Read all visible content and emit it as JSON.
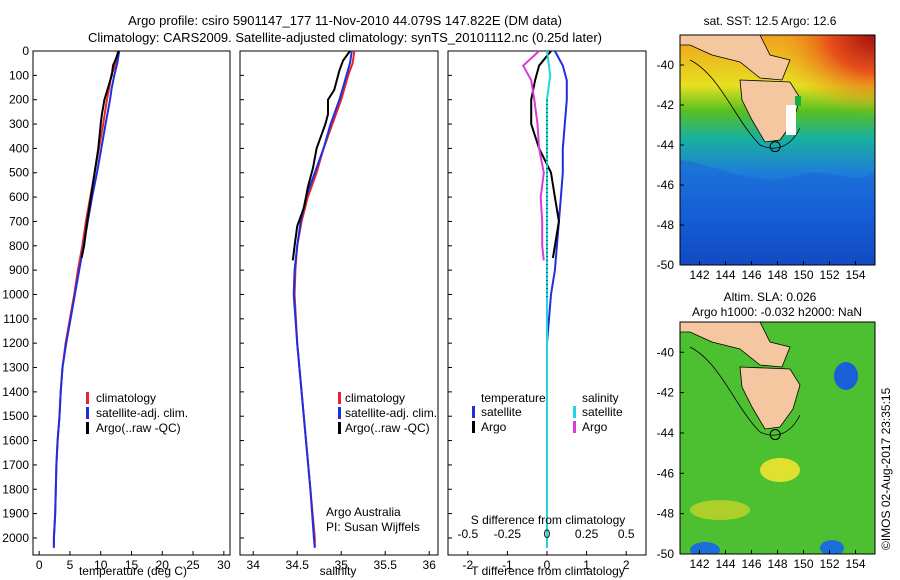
{
  "title_lines": [
    "Argo profile: csiro 5901147_177 11-Nov-2010 44.079S 147.822E (DM data)",
    "Climatology: CARS2009. Satellite-adjusted climatology: synTS_20101112.nc (0.25d later)"
  ],
  "watermark": "©IMOS 02-Aug-2017 23:35:15",
  "credit": [
    "Argo Australia",
    "PI: Susan Wijffels"
  ],
  "colors": {
    "climatology": "#e8262a",
    "satellite": "#1f2fe0",
    "argo": "#000000",
    "salinity_satellite": "#22d6e0",
    "salinity_argo": "#d93bd9"
  },
  "depth_ticks": [
    "0",
    "100",
    "200",
    "300",
    "400",
    "500",
    "600",
    "700",
    "800",
    "900",
    "1000",
    "1100",
    "1200",
    "1300",
    "1400",
    "1500",
    "1600",
    "1700",
    "1800",
    "1900",
    "2000"
  ],
  "chart_data": [
    {
      "type": "line",
      "id": "temperature",
      "xlabel": "temperature (deg C)",
      "ylabel": "",
      "xlim": [
        -1,
        31
      ],
      "ylim": [
        2070,
        0
      ],
      "xticks": [
        "0",
        "5",
        "10",
        "15",
        "20",
        "25",
        "30"
      ],
      "legend": [
        "climatology",
        "satellite-adj. clim.",
        "Argo(..raw -QC)"
      ],
      "legend_position": "lower-center",
      "series": [
        {
          "name": "climatology",
          "depth": [
            0,
            50,
            100,
            150,
            200,
            300,
            400,
            500,
            600,
            700,
            800,
            900,
            1000,
            1100,
            1200,
            1300,
            1400,
            1500,
            1600,
            1700,
            1800,
            1900,
            2000,
            2040
          ],
          "values": [
            12.8,
            12.5,
            11.7,
            11.4,
            11.0,
            10.4,
            9.7,
            9.0,
            8.3,
            7.6,
            7.0,
            6.3,
            5.7,
            5.0,
            4.3,
            3.8,
            3.5,
            3.3,
            3.0,
            2.8,
            2.7,
            2.6,
            2.4,
            2.4
          ]
        },
        {
          "name": "satellite-adj. clim.",
          "depth": [
            0,
            50,
            100,
            150,
            200,
            300,
            400,
            500,
            600,
            700,
            800,
            900,
            1000,
            1100,
            1200,
            1300,
            1400,
            1500,
            1600,
            1700,
            1800,
            1900,
            2000,
            2040
          ],
          "values": [
            13.0,
            12.7,
            12.2,
            11.8,
            11.5,
            10.8,
            10.1,
            9.4,
            8.6,
            7.9,
            7.2,
            6.5,
            5.8,
            5.1,
            4.4,
            3.8,
            3.5,
            3.3,
            3.0,
            2.8,
            2.7,
            2.6,
            2.4,
            2.4
          ]
        },
        {
          "name": "Argo(..raw -QC)",
          "depth": [
            0,
            30,
            60,
            100,
            150,
            200,
            260,
            300,
            400,
            500,
            600,
            700,
            800,
            850
          ],
          "values": [
            12.9,
            12.5,
            12.0,
            11.8,
            11.2,
            10.6,
            10.2,
            10.0,
            9.6,
            9.0,
            8.4,
            7.8,
            7.3,
            6.9
          ]
        }
      ]
    },
    {
      "type": "line",
      "id": "salinity",
      "xlabel": "salinity",
      "ylabel": "",
      "xlim": [
        33.85,
        36.1
      ],
      "ylim": [
        2070,
        0
      ],
      "xticks": [
        "34",
        "34.5",
        "35",
        "35.5",
        "36"
      ],
      "legend": [
        "climatology",
        "satellite-adj. clim.",
        "Argo(..raw -QC)"
      ],
      "legend_position": "lower-right",
      "series": [
        {
          "name": "climatology",
          "depth": [
            0,
            50,
            100,
            150,
            200,
            300,
            400,
            500,
            600,
            700,
            800,
            900,
            1000,
            1200,
            1400,
            1600,
            1800,
            2000,
            2040
          ],
          "values": [
            35.15,
            35.13,
            35.08,
            35.04,
            35.0,
            34.9,
            34.8,
            34.72,
            34.62,
            34.55,
            34.5,
            34.48,
            34.47,
            34.5,
            34.55,
            34.6,
            34.65,
            34.7,
            34.7
          ]
        },
        {
          "name": "satellite-adj. clim.",
          "depth": [
            0,
            50,
            100,
            150,
            200,
            300,
            400,
            500,
            600,
            700,
            800,
            900,
            1000,
            1200,
            1400,
            1600,
            1800,
            2000,
            2040
          ],
          "values": [
            35.12,
            35.1,
            35.06,
            35.02,
            34.98,
            34.88,
            34.8,
            34.7,
            34.6,
            34.54,
            34.5,
            34.47,
            34.46,
            34.5,
            34.55,
            34.6,
            34.65,
            34.69,
            34.7
          ]
        },
        {
          "name": "Argo(..raw -QC)",
          "depth": [
            0,
            40,
            80,
            120,
            160,
            200,
            260,
            300,
            400,
            480,
            560,
            640,
            720,
            800,
            860
          ],
          "values": [
            35.1,
            35.02,
            34.98,
            34.95,
            34.92,
            34.85,
            34.85,
            34.82,
            34.72,
            34.68,
            34.62,
            34.58,
            34.5,
            34.47,
            34.45
          ]
        }
      ]
    },
    {
      "type": "line",
      "id": "difference",
      "xlabel": "T difference from climatology",
      "title": "S difference from climatology",
      "xlim": [
        -2.5,
        2.5
      ],
      "ylim": [
        2070,
        0
      ],
      "xticks": [
        "-2",
        "-1",
        "0",
        "1",
        "2"
      ],
      "top_xticks": [
        "-0.5",
        "-0.25",
        "0",
        "0.25",
        "0.5"
      ],
      "legend": [
        {
          "group": "temperature",
          "items": [
            "satellite",
            "Argo"
          ]
        },
        {
          "group": "salinity",
          "items": [
            "satellite",
            "Argo"
          ]
        }
      ],
      "legend_position": "lower-center",
      "series": [
        {
          "name": "temperature satellite",
          "depth": [
            0,
            60,
            120,
            200,
            300,
            400,
            500,
            600,
            700,
            800,
            900,
            1000,
            1100,
            1200,
            1300,
            1400,
            1500,
            1600,
            1800,
            2000,
            2040
          ],
          "values": [
            0.2,
            0.4,
            0.5,
            0.5,
            0.45,
            0.4,
            0.4,
            0.35,
            0.3,
            0.25,
            0.2,
            0.1,
            0.05,
            0,
            0,
            0,
            0,
            0,
            0,
            0,
            0
          ]
        },
        {
          "name": "temperature Argo",
          "depth": [
            0,
            60,
            120,
            200,
            300,
            400,
            500,
            600,
            700,
            800,
            850
          ],
          "values": [
            0.1,
            -0.2,
            -0.3,
            -0.4,
            -0.4,
            -0.2,
            0.1,
            0.2,
            0.3,
            0.2,
            0.15
          ]
        },
        {
          "name": "salinity satellite",
          "depth": [
            0,
            100,
            200,
            400,
            600,
            800,
            1000,
            1200,
            1400,
            1600,
            1800,
            2000,
            2040
          ],
          "values": [
            0.0,
            0.02,
            0.0,
            0.0,
            0.0,
            0.0,
            0.0,
            0.0,
            0.0,
            0.0,
            0.0,
            0.0,
            0.0
          ]
        },
        {
          "name": "salinity Argo",
          "depth": [
            0,
            60,
            120,
            200,
            300,
            400,
            500,
            600,
            700,
            800,
            860
          ],
          "values": [
            -0.05,
            -0.15,
            -0.1,
            -0.08,
            -0.06,
            -0.05,
            -0.02,
            -0.04,
            -0.03,
            -0.03,
            -0.02
          ]
        }
      ]
    },
    {
      "type": "heatmap",
      "id": "sst-map",
      "title": "sat. SST: 12.5 Argo: 12.6",
      "xlim": [
        140.5,
        155.5
      ],
      "ylim": [
        -50,
        -38.5
      ],
      "xticks": [
        "142",
        "144",
        "146",
        "148",
        "150",
        "152",
        "154"
      ],
      "yticks": [
        "-40",
        "-42",
        "-44",
        "-46",
        "-48",
        "-50"
      ],
      "profile_location": {
        "lon": 147.822,
        "lat": -44.079
      }
    },
    {
      "type": "heatmap",
      "id": "sla-map",
      "title": "Altim. SLA: 0.026",
      "subtitle": "Argo h1000: -0.032 h2000: NaN",
      "xlim": [
        140.5,
        155.5
      ],
      "ylim": [
        -50,
        -38.5
      ],
      "xticks": [
        "142",
        "144",
        "146",
        "148",
        "150",
        "152",
        "154"
      ],
      "yticks": [
        "-40",
        "-42",
        "-44",
        "-46",
        "-48",
        "-50"
      ],
      "profile_location": {
        "lon": 147.822,
        "lat": -44.079
      }
    }
  ]
}
